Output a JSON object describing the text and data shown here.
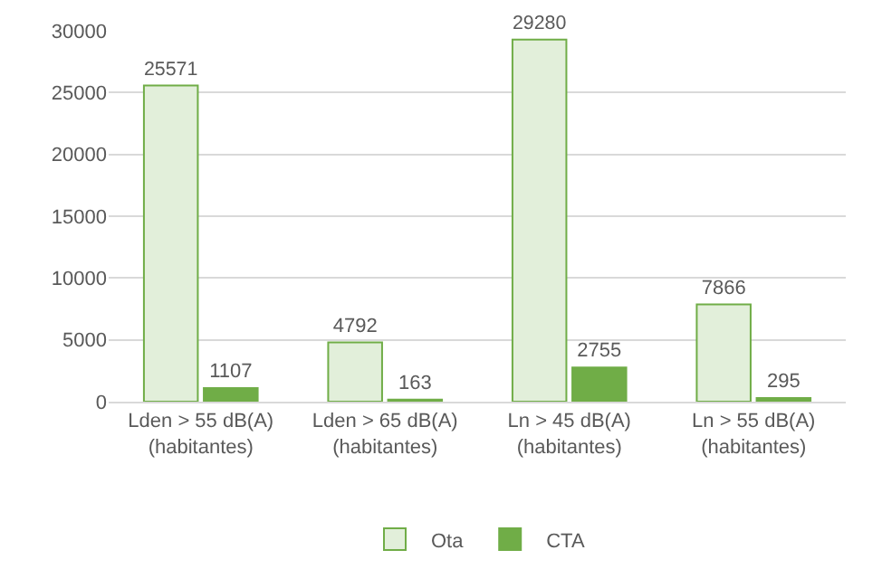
{
  "chart_data": {
    "type": "bar",
    "categories": [
      "Lden > 55 dB(A)\n(habitantes)",
      "Lden > 65 dB(A)\n(habitantes)",
      "Ln > 45 dB(A)\n(habitantes)",
      "Ln > 55 dB(A)\n(habitantes)"
    ],
    "series": [
      {
        "name": "Ota",
        "color": "#e2efda",
        "values": [
          25571,
          4792,
          29280,
          7866
        ]
      },
      {
        "name": "CTA",
        "color": "#70ad47",
        "values": [
          1107,
          163,
          2755,
          295
        ]
      }
    ],
    "ylim": [
      0,
      30000
    ],
    "yticks": [
      0,
      5000,
      10000,
      15000,
      20000,
      25000,
      30000
    ],
    "grid": "y",
    "legend": "bottom",
    "data_labels": true
  }
}
